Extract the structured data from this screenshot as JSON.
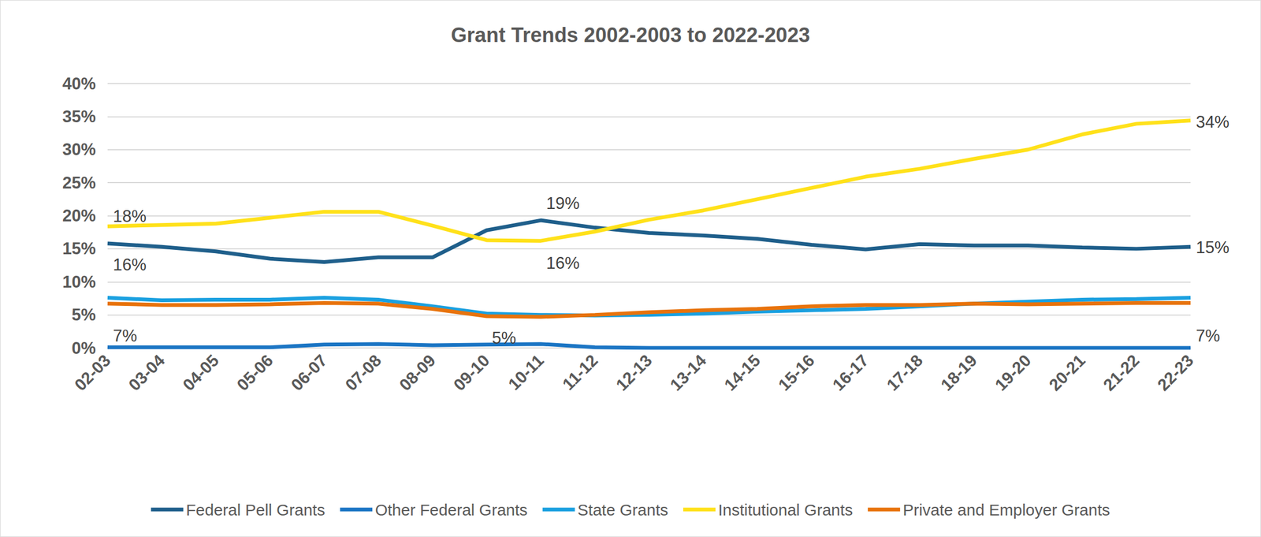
{
  "chart_data": {
    "type": "line",
    "title": "Grant Trends 2002-2003 to 2022-2023",
    "categories": [
      "02-03",
      "03-04",
      "04-05",
      "05-06",
      "06-07",
      "07-08",
      "08-09",
      "09-10",
      "10-11",
      "11-12",
      "12-13",
      "13-14",
      "14-15",
      "15-16",
      "16-17",
      "17-18",
      "18-19",
      "19-20",
      "20-21",
      "21-22",
      "22-23"
    ],
    "series": [
      {
        "name": "Federal Pell Grants",
        "color": "#1f5f8b",
        "values": [
          15.8,
          15.3,
          14.6,
          13.5,
          13.0,
          13.7,
          13.7,
          17.8,
          19.3,
          18.2,
          17.4,
          17.0,
          16.5,
          15.6,
          14.9,
          15.7,
          15.5,
          15.5,
          15.2,
          15.0,
          15.3
        ]
      },
      {
        "name": "Other Federal Grants",
        "color": "#1b75c4",
        "values": [
          0.1,
          0.1,
          0.1,
          0.1,
          0.5,
          0.6,
          0.4,
          0.5,
          0.6,
          0.1,
          0,
          0,
          0,
          0,
          0,
          0,
          0,
          0,
          0,
          0,
          0
        ]
      },
      {
        "name": "State Grants",
        "color": "#1aa0e0",
        "values": [
          7.6,
          7.2,
          7.3,
          7.3,
          7.6,
          7.3,
          6.3,
          5.2,
          5.0,
          4.9,
          5.0,
          5.2,
          5.5,
          5.7,
          5.9,
          6.3,
          6.7,
          7.0,
          7.3,
          7.4,
          7.6
        ]
      },
      {
        "name": "Institutional Grants",
        "color": "#ffe11a",
        "values": [
          18.4,
          18.6,
          18.8,
          19.7,
          20.6,
          20.6,
          18.5,
          16.3,
          16.2,
          17.6,
          19.4,
          20.8,
          22.5,
          24.2,
          25.9,
          27.1,
          28.6,
          30.0,
          32.3,
          33.9,
          34.4
        ]
      },
      {
        "name": "Private and Employer Grants",
        "color": "#e8730c",
        "values": [
          6.7,
          6.5,
          6.5,
          6.6,
          6.8,
          6.7,
          5.9,
          4.8,
          4.7,
          5.0,
          5.4,
          5.7,
          5.9,
          6.3,
          6.5,
          6.5,
          6.7,
          6.6,
          6.7,
          6.8,
          6.8
        ]
      }
    ],
    "annotations": [
      {
        "text": "18%",
        "x": "02-03",
        "y": 19.9
      },
      {
        "text": "16%",
        "x": "02-03",
        "y": 12.6
      },
      {
        "text": "19%",
        "x": "10-11",
        "y": 21.9
      },
      {
        "text": "16%",
        "x": "10-11",
        "y": 12.8
      },
      {
        "text": "34%",
        "x": "22-23",
        "y": 34.2
      },
      {
        "text": "15%",
        "x": "22-23",
        "y": 15.2
      },
      {
        "text": "7%",
        "x": "02-03",
        "y": 1.8
      },
      {
        "text": "5%",
        "x": "09-10",
        "y": 1.5
      },
      {
        "text": "7%",
        "x": "22-23",
        "y": 1.8
      }
    ],
    "ylim": [
      0,
      40
    ],
    "yticks": [
      {
        "value": 0,
        "label": "0%"
      },
      {
        "value": 5,
        "label": "5%"
      },
      {
        "value": 10,
        "label": "10%"
      },
      {
        "value": 15,
        "label": "15%"
      },
      {
        "value": 20,
        "label": "20%"
      },
      {
        "value": 25,
        "label": "25%"
      },
      {
        "value": 30,
        "label": "30%"
      },
      {
        "value": 35,
        "label": "35%"
      },
      {
        "value": 40,
        "label": "40%"
      }
    ],
    "grid": true,
    "legend": "bottom"
  }
}
